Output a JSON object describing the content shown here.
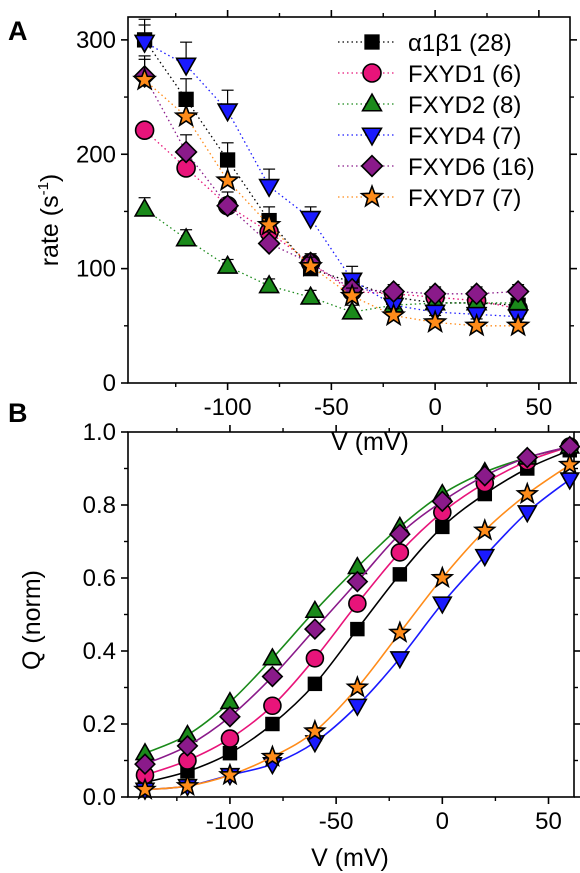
{
  "chart_data": [
    {
      "type": "scatter",
      "panel_label": "A",
      "xlabel": "V (mV)",
      "ylabel": "rate (s",
      "ylabel_sup": "-1",
      "ylabel_close": ")",
      "xlim": [
        -148,
        65
      ],
      "ylim": [
        0,
        320
      ],
      "xticks": [
        -100,
        -50,
        0,
        50
      ],
      "xtick_labels": [
        "-100",
        "-50",
        "0",
        "50"
      ],
      "yticks": [
        0,
        100,
        200,
        300
      ],
      "ytick_labels": [
        "0",
        "100",
        "200",
        "300"
      ],
      "legend_position": "top-right",
      "x": [
        -140,
        -120,
        -100,
        -80,
        -60,
        -40,
        -20,
        0,
        20,
        40
      ],
      "series": [
        {
          "name": "α1β1 (28)",
          "color": "#000000",
          "marker": "square",
          "values": [
            300,
            248,
            195,
            142,
            100,
            88,
            75,
            70,
            70,
            68
          ],
          "errors": [
            18,
            18,
            15,
            12,
            10,
            8,
            7,
            6,
            6,
            6
          ]
        },
        {
          "name": "FXYD1 (6)",
          "color": "#e8147a",
          "marker": "circle",
          "values": [
            221,
            188,
            155,
            132,
            105,
            80,
            78,
            75,
            72,
            65
          ],
          "errors": [
            6,
            6,
            6,
            5,
            5,
            5,
            5,
            5,
            5,
            5
          ]
        },
        {
          "name": "FXYD2 (8)",
          "color": "#1a8a1a",
          "marker": "triangle-up",
          "values": [
            152,
            126,
            102,
            85,
            75,
            62,
            68,
            70,
            70,
            70
          ],
          "errors": [
            10,
            8,
            6,
            6,
            6,
            6,
            6,
            6,
            6,
            6
          ]
        },
        {
          "name": "FXYD4 (7)",
          "color": "#1a1aff",
          "marker": "triangle-down",
          "values": [
            298,
            278,
            238,
            172,
            144,
            90,
            68,
            62,
            60,
            58
          ],
          "errors": [
            15,
            20,
            18,
            15,
            10,
            12,
            8,
            6,
            6,
            6
          ]
        },
        {
          "name": "FXYD6 (16)",
          "color": "#8a1a8a",
          "marker": "diamond",
          "values": [
            268,
            202,
            155,
            122,
            105,
            82,
            80,
            78,
            78,
            80
          ],
          "errors": [
            18,
            15,
            12,
            10,
            8,
            6,
            6,
            6,
            6,
            6
          ]
        },
        {
          "name": "FXYD7 (7)",
          "color": "#ff8c1a",
          "marker": "star",
          "values": [
            265,
            233,
            177,
            138,
            102,
            76,
            59,
            53,
            50,
            50
          ],
          "errors": [
            18,
            15,
            12,
            10,
            8,
            7,
            6,
            6,
            6,
            6
          ]
        }
      ]
    },
    {
      "type": "scatter",
      "panel_label": "B",
      "xlabel": "V (mV)",
      "ylabel": "Q (norm)",
      "xlim": [
        -148,
        62
      ],
      "ylim": [
        0,
        1.0
      ],
      "xticks": [
        -100,
        -50,
        0,
        50
      ],
      "xtick_labels": [
        "-100",
        "-50",
        "0",
        "50"
      ],
      "yticks": [
        0,
        0.2,
        0.4,
        0.6,
        0.8,
        1.0
      ],
      "ytick_labels": [
        "0.0",
        "0.2",
        "0.4",
        "0.6",
        "0.8",
        "1.0"
      ],
      "x": [
        -140,
        -120,
        -100,
        -80,
        -60,
        -40,
        -20,
        0,
        20,
        40,
        60
      ],
      "series": [
        {
          "color": "#000000",
          "marker": "square",
          "values": [
            0.04,
            0.07,
            0.12,
            0.2,
            0.31,
            0.46,
            0.61,
            0.74,
            0.83,
            0.9,
            0.95
          ]
        },
        {
          "color": "#e8147a",
          "marker": "circle",
          "values": [
            0.06,
            0.1,
            0.16,
            0.25,
            0.38,
            0.53,
            0.67,
            0.78,
            0.86,
            0.92,
            0.96
          ]
        },
        {
          "color": "#1a8a1a",
          "marker": "triangle-up",
          "values": [
            0.12,
            0.17,
            0.26,
            0.38,
            0.51,
            0.63,
            0.74,
            0.83,
            0.89,
            0.93,
            0.96
          ]
        },
        {
          "color": "#1a1aff",
          "marker": "triangle-down",
          "values": [
            0.02,
            0.03,
            0.06,
            0.09,
            0.15,
            0.25,
            0.38,
            0.53,
            0.66,
            0.78,
            0.87
          ]
        },
        {
          "color": "#8a1a8a",
          "marker": "diamond",
          "values": [
            0.09,
            0.14,
            0.22,
            0.33,
            0.46,
            0.59,
            0.72,
            0.81,
            0.88,
            0.93,
            0.96
          ]
        },
        {
          "color": "#ff8c1a",
          "marker": "star",
          "values": [
            0.02,
            0.03,
            0.06,
            0.11,
            0.18,
            0.3,
            0.45,
            0.6,
            0.73,
            0.83,
            0.91
          ]
        }
      ]
    }
  ]
}
